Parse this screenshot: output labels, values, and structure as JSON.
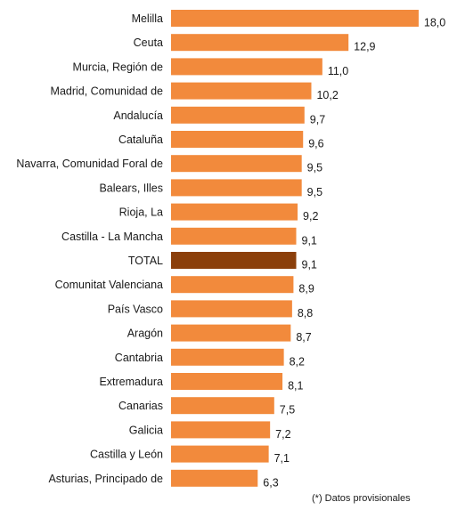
{
  "chart_data": {
    "type": "bar",
    "orientation": "horizontal",
    "title": "",
    "xlabel": "",
    "ylabel": "",
    "categories": [
      "Melilla",
      "Ceuta",
      "Murcia, Región de",
      "Madrid, Comunidad de",
      "Andalucía",
      "Cataluña",
      "Navarra, Comunidad Foral de",
      "Balears, Illes",
      "Rioja, La",
      "Castilla - La Mancha",
      "TOTAL",
      "Comunitat Valenciana",
      "País Vasco",
      "Aragón",
      "Cantabria",
      "Extremadura",
      "Canarias",
      "Galicia",
      "Castilla y León",
      "Asturias, Principado de"
    ],
    "values": [
      18.0,
      12.9,
      11.0,
      10.2,
      9.7,
      9.6,
      9.5,
      9.5,
      9.2,
      9.1,
      9.1,
      8.9,
      8.8,
      8.7,
      8.2,
      8.1,
      7.5,
      7.2,
      7.1,
      6.3
    ],
    "value_labels": [
      "18,0",
      "12,9",
      "11,0",
      "10,2",
      "9,7",
      "9,6",
      "9,5",
      "9,5",
      "9,2",
      "9,1",
      "9,1",
      "8,9",
      "8,8",
      "8,7",
      "8,2",
      "8,1",
      "7,5",
      "7,2",
      "7,1",
      "6,3"
    ],
    "highlight_index": 10,
    "colors": {
      "bar": "#f28a3c",
      "highlight": "#8b3f0b"
    },
    "grid": false,
    "legend": "none"
  },
  "footnote": "(*) Datos provisionales"
}
